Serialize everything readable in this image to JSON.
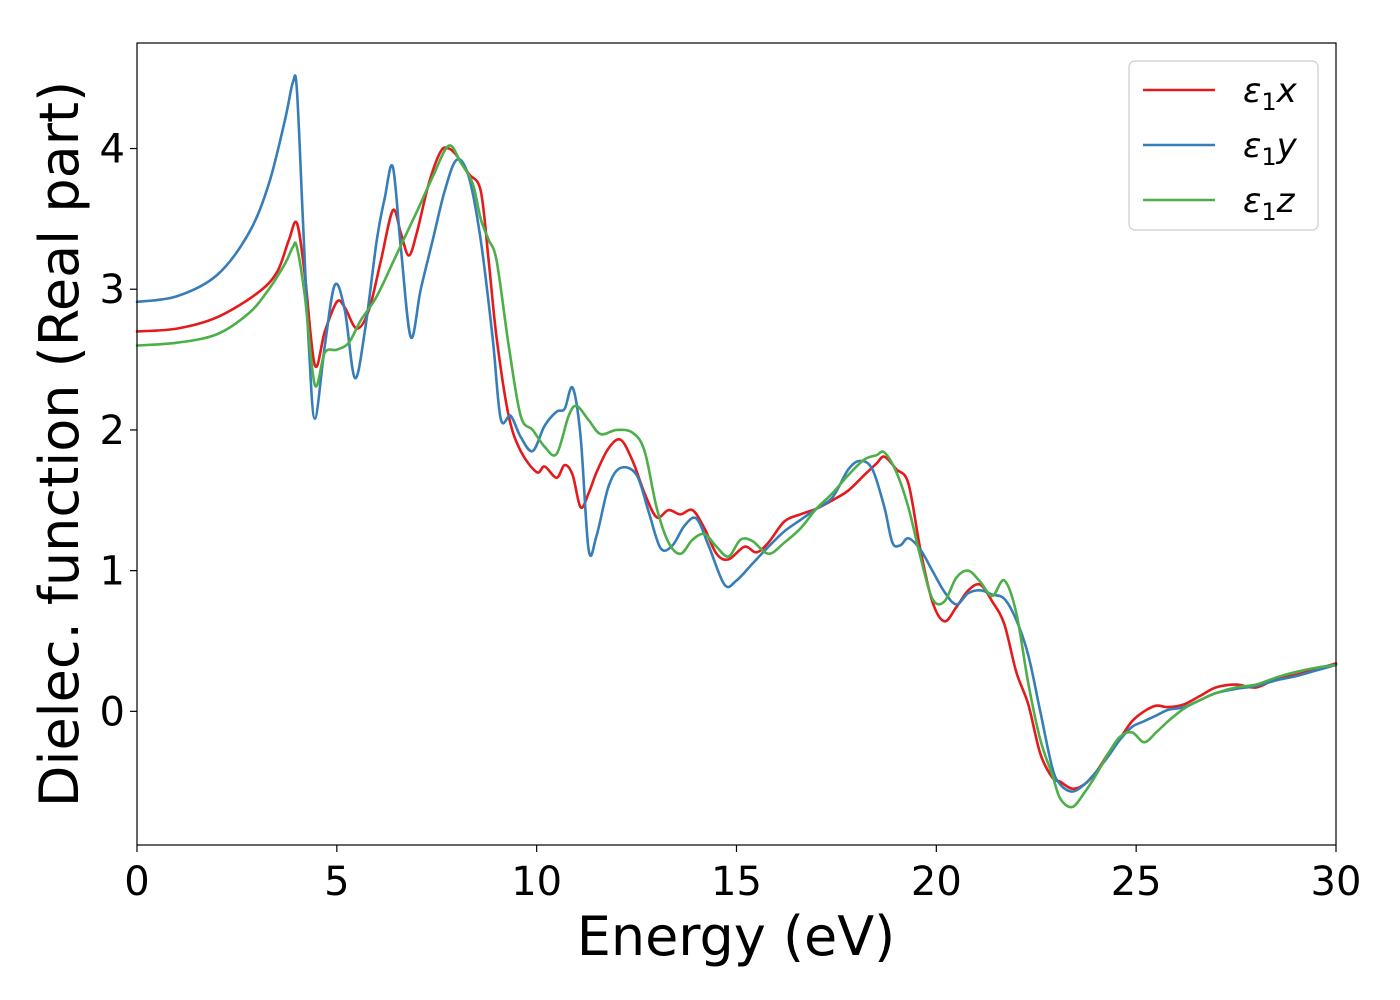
{
  "chart_data": {
    "type": "line",
    "xlabel": "Energy (eV)",
    "ylabel": "Dielec. function (Real part)",
    "xlim": [
      0,
      30
    ],
    "ylim": [
      -0.95,
      4.75
    ],
    "xticks": [
      0,
      5,
      10,
      15,
      20,
      25,
      30
    ],
    "xtick_labels": [
      "0",
      "5",
      "10",
      "15",
      "20",
      "25",
      "30"
    ],
    "yticks": [
      0,
      1,
      2,
      3,
      4
    ],
    "ytick_labels": [
      "0",
      "1",
      "2",
      "3",
      "4"
    ],
    "grid": false,
    "legend_position": "top-right",
    "legend": [
      {
        "base": "ε",
        "sub": "1",
        "suffix": "x",
        "color": "#e41a1c"
      },
      {
        "base": "ε",
        "sub": "1",
        "suffix": "y",
        "color": "#377eb8"
      },
      {
        "base": "ε",
        "sub": "1",
        "suffix": "z",
        "color": "#4daf4a"
      }
    ],
    "series": [
      {
        "name": "ε1x",
        "color": "#e41a1c",
        "x": [
          0,
          1,
          2,
          3,
          3.5,
          3.8,
          4.0,
          4.2,
          4.45,
          4.7,
          5.0,
          5.2,
          5.5,
          5.8,
          6.1,
          6.4,
          6.6,
          6.8,
          7.0,
          7.3,
          7.6,
          7.8,
          8.0,
          8.3,
          8.6,
          8.8,
          9.0,
          9.3,
          9.6,
          10.0,
          10.2,
          10.5,
          10.7,
          10.9,
          11.1,
          11.3,
          11.5,
          11.8,
          12.1,
          12.4,
          12.7,
          13.0,
          13.3,
          13.6,
          13.9,
          14.2,
          14.5,
          14.8,
          15.2,
          15.5,
          15.8,
          16.2,
          16.6,
          17.0,
          17.4,
          17.8,
          18.2,
          18.5,
          18.7,
          19.0,
          19.3,
          19.6,
          19.9,
          20.2,
          20.5,
          20.8,
          21.1,
          21.4,
          21.7,
          22.0,
          22.3,
          22.6,
          22.9,
          23.1,
          23.4,
          23.7,
          24.0,
          24.3,
          24.6,
          24.9,
          25.2,
          25.5,
          25.8,
          26.2,
          26.6,
          27.0,
          27.5,
          28.0,
          28.5,
          29.0,
          29.5,
          30.0
        ],
        "y": [
          2.7,
          2.72,
          2.8,
          2.97,
          3.12,
          3.35,
          3.47,
          3.1,
          2.46,
          2.7,
          2.91,
          2.87,
          2.72,
          2.85,
          3.2,
          3.56,
          3.4,
          3.24,
          3.4,
          3.75,
          3.98,
          4.0,
          3.95,
          3.82,
          3.7,
          3.2,
          2.65,
          2.1,
          1.85,
          1.7,
          1.74,
          1.66,
          1.75,
          1.68,
          1.45,
          1.55,
          1.7,
          1.87,
          1.93,
          1.78,
          1.55,
          1.38,
          1.43,
          1.4,
          1.43,
          1.3,
          1.12,
          1.08,
          1.17,
          1.13,
          1.2,
          1.35,
          1.4,
          1.44,
          1.5,
          1.57,
          1.68,
          1.76,
          1.81,
          1.72,
          1.62,
          1.15,
          0.78,
          0.64,
          0.74,
          0.86,
          0.9,
          0.78,
          0.62,
          0.28,
          0.05,
          -0.3,
          -0.47,
          -0.5,
          -0.55,
          -0.52,
          -0.43,
          -0.3,
          -0.19,
          -0.07,
          0.0,
          0.04,
          0.03,
          0.05,
          0.11,
          0.17,
          0.19,
          0.17,
          0.23,
          0.26,
          0.3,
          0.34
        ]
      },
      {
        "name": "ε1y",
        "color": "#377eb8",
        "x": [
          0,
          1,
          2,
          2.8,
          3.3,
          3.7,
          3.9,
          4.0,
          4.15,
          4.3,
          4.45,
          4.7,
          4.95,
          5.2,
          5.45,
          5.7,
          6.0,
          6.2,
          6.4,
          6.6,
          6.85,
          7.1,
          7.4,
          7.7,
          8.0,
          8.3,
          8.6,
          8.9,
          9.1,
          9.35,
          9.6,
          9.9,
          10.2,
          10.5,
          10.7,
          10.9,
          11.1,
          11.3,
          11.5,
          11.8,
          12.1,
          12.5,
          12.8,
          13.1,
          13.4,
          13.7,
          14.0,
          14.3,
          14.7,
          15.0,
          15.4,
          15.8,
          16.2,
          16.6,
          17.0,
          17.4,
          17.8,
          18.1,
          18.4,
          18.7,
          18.9,
          19.1,
          19.3,
          19.6,
          19.9,
          20.2,
          20.5,
          20.8,
          21.1,
          21.4,
          21.7,
          22.0,
          22.3,
          22.6,
          22.9,
          23.1,
          23.4,
          23.7,
          24.0,
          24.3,
          24.6,
          24.9,
          25.2,
          25.5,
          25.8,
          26.2,
          26.6,
          27.0,
          27.5,
          28.0,
          28.5,
          29.0,
          29.5,
          30.0
        ],
        "y": [
          2.91,
          2.95,
          3.1,
          3.4,
          3.75,
          4.2,
          4.47,
          4.42,
          3.5,
          2.6,
          2.08,
          2.6,
          3.03,
          2.85,
          2.37,
          2.7,
          3.35,
          3.65,
          3.87,
          3.3,
          2.66,
          3.0,
          3.35,
          3.7,
          3.92,
          3.8,
          3.35,
          2.65,
          2.08,
          2.1,
          1.95,
          1.85,
          2.03,
          2.13,
          2.15,
          2.3,
          1.95,
          1.15,
          1.25,
          1.6,
          1.73,
          1.68,
          1.42,
          1.16,
          1.18,
          1.32,
          1.37,
          1.18,
          0.9,
          0.93,
          1.05,
          1.17,
          1.28,
          1.36,
          1.44,
          1.52,
          1.72,
          1.78,
          1.72,
          1.45,
          1.2,
          1.18,
          1.23,
          1.15,
          1.0,
          0.85,
          0.76,
          0.84,
          0.86,
          0.83,
          0.8,
          0.65,
          0.4,
          0.0,
          -0.4,
          -0.52,
          -0.57,
          -0.52,
          -0.43,
          -0.32,
          -0.2,
          -0.11,
          -0.07,
          -0.03,
          0.01,
          0.03,
          0.08,
          0.13,
          0.16,
          0.18,
          0.22,
          0.25,
          0.29,
          0.33
        ]
      },
      {
        "name": "ε1z",
        "color": "#4daf4a",
        "x": [
          0,
          1,
          2,
          2.8,
          3.3,
          3.7,
          3.9,
          4.0,
          4.2,
          4.45,
          4.7,
          5.0,
          5.3,
          5.6,
          6.0,
          6.5,
          7.0,
          7.4,
          7.8,
          8.1,
          8.4,
          8.6,
          8.8,
          9.0,
          9.3,
          9.6,
          9.9,
          10.2,
          10.5,
          10.8,
          11.0,
          11.3,
          11.6,
          12.0,
          12.4,
          12.7,
          13.0,
          13.3,
          13.6,
          13.9,
          14.2,
          14.5,
          14.8,
          15.1,
          15.4,
          15.8,
          16.2,
          16.6,
          17.0,
          17.4,
          17.8,
          18.2,
          18.5,
          18.7,
          19.0,
          19.3,
          19.6,
          19.9,
          20.2,
          20.5,
          20.8,
          21.1,
          21.4,
          21.7,
          22.0,
          22.3,
          22.6,
          22.9,
          23.1,
          23.4,
          23.7,
          24.0,
          24.3,
          24.6,
          24.9,
          25.2,
          25.5,
          25.8,
          26.2,
          26.6,
          27.0,
          27.5,
          28.0,
          28.5,
          29.0,
          29.5,
          30.0
        ],
        "y": [
          2.6,
          2.62,
          2.68,
          2.83,
          3.0,
          3.18,
          3.3,
          3.3,
          2.95,
          2.32,
          2.55,
          2.57,
          2.62,
          2.78,
          2.95,
          3.25,
          3.55,
          3.8,
          4.02,
          3.9,
          3.75,
          3.5,
          3.35,
          3.2,
          2.6,
          2.1,
          2.0,
          1.88,
          1.83,
          2.1,
          2.17,
          2.07,
          1.97,
          2.0,
          1.98,
          1.85,
          1.45,
          1.2,
          1.12,
          1.22,
          1.26,
          1.17,
          1.1,
          1.22,
          1.21,
          1.12,
          1.2,
          1.3,
          1.44,
          1.55,
          1.68,
          1.79,
          1.82,
          1.84,
          1.7,
          1.45,
          1.1,
          0.8,
          0.78,
          0.95,
          1.0,
          0.92,
          0.82,
          0.93,
          0.7,
          0.2,
          -0.2,
          -0.45,
          -0.62,
          -0.68,
          -0.58,
          -0.45,
          -0.3,
          -0.18,
          -0.15,
          -0.22,
          -0.15,
          -0.07,
          0.02,
          0.08,
          0.13,
          0.17,
          0.19,
          0.24,
          0.28,
          0.31,
          0.33
        ]
      }
    ]
  }
}
